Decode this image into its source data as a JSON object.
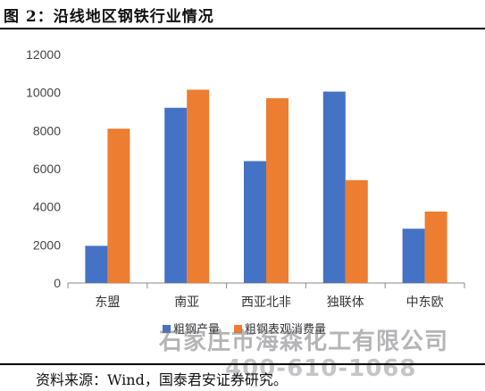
{
  "header": {
    "title": "图 2：沿线地区钢铁行业情况"
  },
  "footer": {
    "source": "资料来源：Wind，国泰君安证券研究。"
  },
  "watermark": {
    "line1": "石家庄市海森化工有限公司",
    "line2": "400-610-1068"
  },
  "chart_data": {
    "type": "bar",
    "title": "",
    "xlabel": "",
    "ylabel": "",
    "categories": [
      "东盟",
      "南亚",
      "西亚北非",
      "独联体",
      "中东欧"
    ],
    "series": [
      {
        "name": "粗钢产量",
        "color": "#4472c4",
        "values": [
          1950,
          9200,
          6400,
          10050,
          2850
        ]
      },
      {
        "name": "粗钢表观消费量",
        "color": "#ed7d31",
        "values": [
          8100,
          10150,
          9700,
          5400,
          3750
        ]
      }
    ],
    "ylim": [
      0,
      12000
    ],
    "yticks": [
      "0",
      "2000",
      "4000",
      "6000",
      "8000",
      "10000",
      "12000"
    ],
    "grid": false,
    "legend_position": "bottom"
  }
}
